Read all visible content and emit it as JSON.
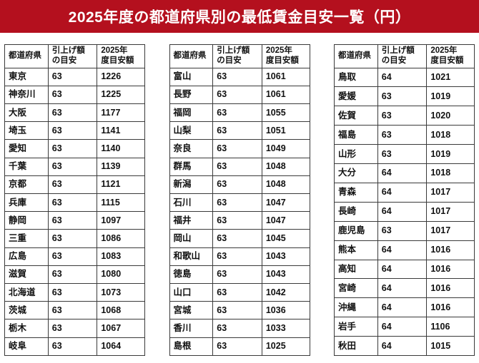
{
  "banner": {
    "title": "2025年度の都道府県別の最低賃金目安一覧（円）"
  },
  "colors": {
    "banner_bg": "#b4101e",
    "banner_text": "#ffffff",
    "table_border": "#3a3a3a"
  },
  "chart_data": {
    "type": "table",
    "title": "2025年度の都道府県別の最低賃金目安一覧（円）",
    "columns": [
      "都道府県",
      "引上げ額の目安",
      "2025年度目安額"
    ],
    "tables": [
      {
        "headers": [
          "都道府県",
          "引上げ額\nの目安",
          "2025年\n度目安額"
        ],
        "rows": [
          [
            "東京",
            "63",
            "1226"
          ],
          [
            "神奈川",
            "63",
            "1225"
          ],
          [
            "大阪",
            "63",
            "1177"
          ],
          [
            "埼玉",
            "63",
            "1141"
          ],
          [
            "愛知",
            "63",
            "1140"
          ],
          [
            "千葉",
            "63",
            "1139"
          ],
          [
            "京都",
            "63",
            "1121"
          ],
          [
            "兵庫",
            "63",
            "1115"
          ],
          [
            "静岡",
            "63",
            "1097"
          ],
          [
            "三重",
            "63",
            "1086"
          ],
          [
            "広島",
            "63",
            "1083"
          ],
          [
            "滋賀",
            "63",
            "1080"
          ],
          [
            "北海道",
            "63",
            "1073"
          ],
          [
            "茨城",
            "63",
            "1068"
          ],
          [
            "栃木",
            "63",
            "1067"
          ],
          [
            "岐阜",
            "63",
            "1064"
          ]
        ]
      },
      {
        "headers": [
          "都道府県",
          "引上げ額\nの目安",
          "2025年\n度目安額"
        ],
        "rows": [
          [
            "富山",
            "63",
            "1061"
          ],
          [
            "長野",
            "63",
            "1061"
          ],
          [
            "福岡",
            "63",
            "1055"
          ],
          [
            "山梨",
            "63",
            "1051"
          ],
          [
            "奈良",
            "63",
            "1049"
          ],
          [
            "群馬",
            "63",
            "1048"
          ],
          [
            "新潟",
            "63",
            "1048"
          ],
          [
            "石川",
            "63",
            "1047"
          ],
          [
            "福井",
            "63",
            "1047"
          ],
          [
            "岡山",
            "63",
            "1045"
          ],
          [
            "和歌山",
            "63",
            "1043"
          ],
          [
            "徳島",
            "63",
            "1043"
          ],
          [
            "山口",
            "63",
            "1042"
          ],
          [
            "宮城",
            "63",
            "1036"
          ],
          [
            "香川",
            "63",
            "1033"
          ],
          [
            "島根",
            "63",
            "1025"
          ]
        ]
      },
      {
        "headers": [
          "都道府県",
          "引上げ額\nの目安",
          "2025年\n度目安額"
        ],
        "rows": [
          [
            "鳥取",
            "64",
            "1021"
          ],
          [
            "愛媛",
            "63",
            "1019"
          ],
          [
            "佐賀",
            "63",
            "1020"
          ],
          [
            "福島",
            "63",
            "1018"
          ],
          [
            "山形",
            "63",
            "1019"
          ],
          [
            "大分",
            "64",
            "1018"
          ],
          [
            "青森",
            "64",
            "1017"
          ],
          [
            "長崎",
            "64",
            "1017"
          ],
          [
            "鹿児島",
            "63",
            "1017"
          ],
          [
            "熊本",
            "64",
            "1016"
          ],
          [
            "高知",
            "64",
            "1016"
          ],
          [
            "宮崎",
            "64",
            "1016"
          ],
          [
            "沖縄",
            "64",
            "1016"
          ],
          [
            "岩手",
            "64",
            "1106"
          ],
          [
            "秋田",
            "64",
            "1015"
          ]
        ]
      }
    ]
  }
}
